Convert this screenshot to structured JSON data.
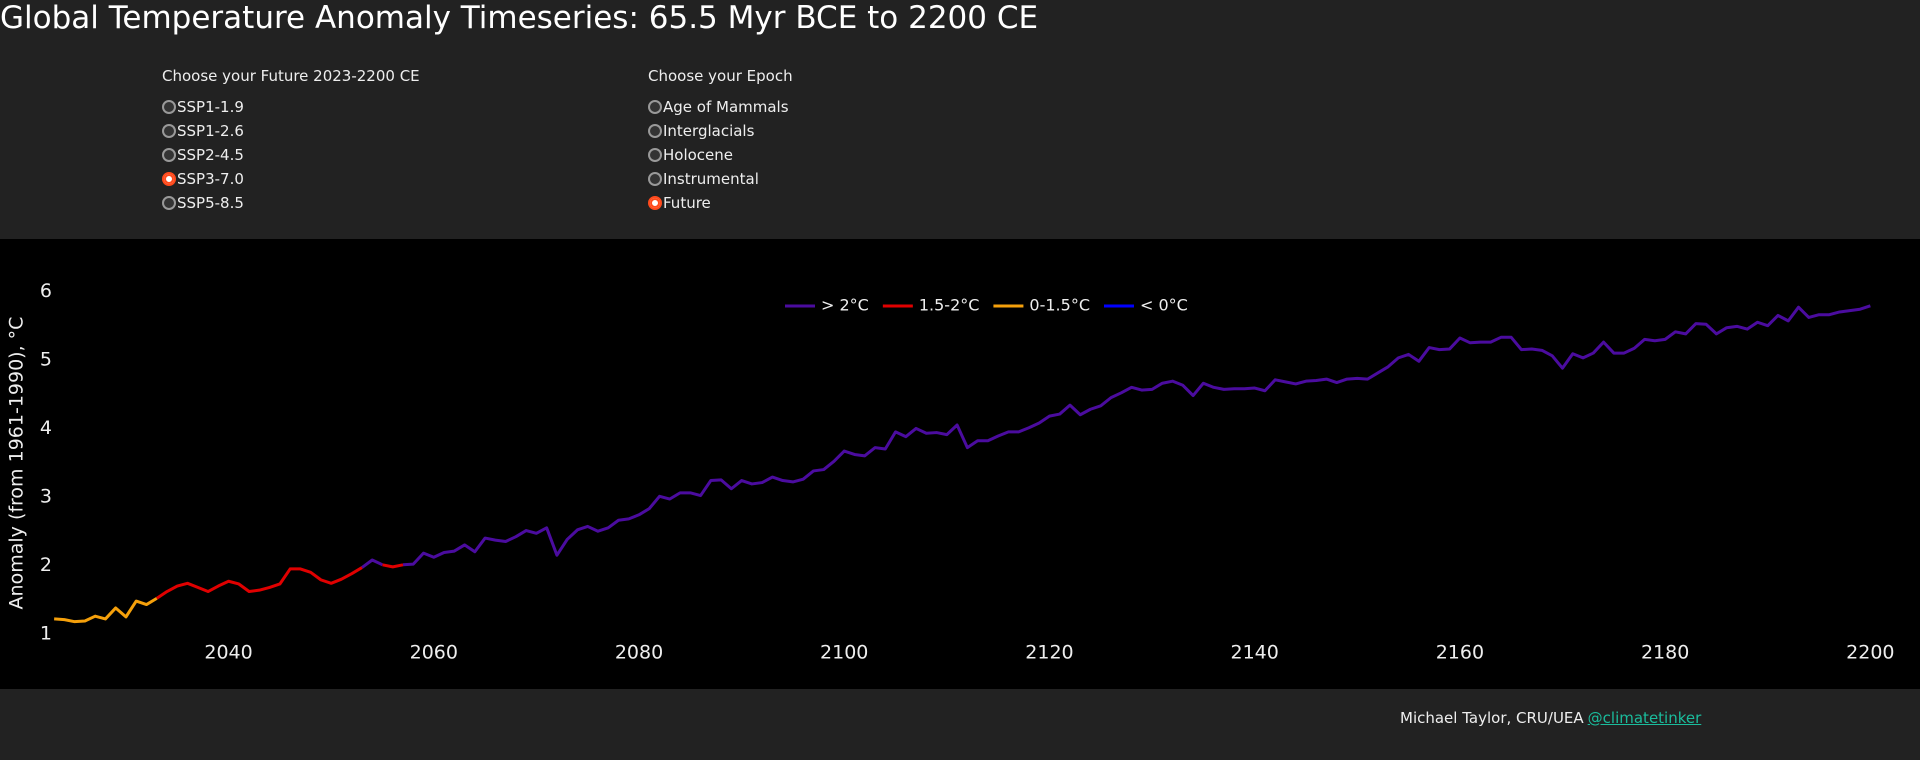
{
  "header": {
    "title": "Global Temperature Anomaly Timeseries: 65.5 Myr BCE to 2200 CE"
  },
  "controls": [
    {
      "title": "Choose your Future 2023-2200 CE",
      "options": [
        "SSP1-1.9",
        "SSP1-2.6",
        "SSP2-4.5",
        "SSP3-7.0",
        "SSP5-8.5"
      ],
      "selected": 3
    },
    {
      "title": "Choose your Epoch",
      "options": [
        "Age of Mammals",
        "Interglacials",
        "Holocene",
        "Instrumental",
        "Future"
      ],
      "selected": 4
    }
  ],
  "chart_data": {
    "type": "line",
    "ylabel": "Anomaly (from 1961-1990), °C",
    "xlim": [
      2022.5,
      2202.5
    ],
    "xticks": [
      2040,
      2060,
      2080,
      2100,
      2120,
      2140,
      2160,
      2180,
      2200
    ],
    "ylim": [
      1,
      6.4
    ],
    "yticks": [
      1,
      2,
      3,
      4,
      5,
      6
    ],
    "grid": false,
    "series": [
      {
        "name": "> 2°C",
        "color": "#4b0c9f",
        "x": [
          2053,
          2054,
          2055,
          2056,
          2057,
          2058,
          2059,
          2060,
          2061,
          2062,
          2063,
          2064,
          2065,
          2066,
          2067,
          2068,
          2069,
          2070,
          2071,
          2072,
          2073,
          2074,
          2075,
          2076,
          2077,
          2078,
          2079,
          2080,
          2081,
          2082,
          2083,
          2084,
          2085,
          2086,
          2087,
          2088,
          2089,
          2090,
          2091,
          2092,
          2093,
          2094,
          2095,
          2096,
          2097,
          2098,
          2099,
          2100,
          2101,
          2102,
          2103,
          2104,
          2105,
          2106,
          2107,
          2108,
          2109,
          2110,
          2111,
          2112,
          2113,
          2114,
          2115,
          2116,
          2117,
          2118,
          2119,
          2120,
          2121,
          2122,
          2123,
          2124,
          2125,
          2126,
          2127,
          2128,
          2129,
          2130,
          2131,
          2132,
          2133,
          2134,
          2135,
          2136,
          2137,
          2138,
          2139,
          2140,
          2141,
          2142,
          2143,
          2144,
          2145,
          2146,
          2147,
          2148,
          2149,
          2150,
          2151,
          2152,
          2153,
          2154,
          2155,
          2156,
          2157,
          2158,
          2159,
          2160,
          2161,
          2162,
          2163,
          2164,
          2165,
          2166,
          2167,
          2168,
          2169,
          2170,
          2171,
          2172,
          2173,
          2174,
          2175,
          2176,
          2177,
          2178,
          2179,
          2180,
          2181,
          2182,
          2183,
          2184,
          2185,
          2186,
          2187,
          2188,
          2189,
          2190,
          2191,
          2192,
          2193,
          2194,
          2195,
          2196,
          2197,
          2198,
          2199,
          2200
        ],
        "values": [
          1.97,
          2.08,
          2.01,
          null,
          2.01,
          2.02,
          2.18,
          2.12,
          2.19,
          2.21,
          2.3,
          2.2,
          2.4,
          2.37,
          2.35,
          2.42,
          2.51,
          2.47,
          2.55,
          2.15,
          2.38,
          2.52,
          2.57,
          2.5,
          2.55,
          2.66,
          2.68,
          2.74,
          2.83,
          3.01,
          2.97,
          3.06,
          3.06,
          3.02,
          3.24,
          3.25,
          3.12,
          3.24,
          3.19,
          3.21,
          3.29,
          3.24,
          3.22,
          3.26,
          3.38,
          3.4,
          3.52,
          3.67,
          3.62,
          3.6,
          3.72,
          3.7,
          3.95,
          3.88,
          4.0,
          3.93,
          3.94,
          3.91,
          4.05,
          3.72,
          3.82,
          3.82,
          3.89,
          3.95,
          3.95,
          4.01,
          4.08,
          4.18,
          4.21,
          4.34,
          4.2,
          4.28,
          4.33,
          4.45,
          4.52,
          4.6,
          4.56,
          4.57,
          4.66,
          4.69,
          4.63,
          4.48,
          4.66,
          4.6,
          4.57,
          4.58,
          4.58,
          4.59,
          4.55,
          4.71,
          4.68,
          4.65,
          4.69,
          4.7,
          4.72,
          4.67,
          4.72,
          4.73,
          4.72,
          4.81,
          4.9,
          5.03,
          5.08,
          4.98,
          5.18,
          5.15,
          5.16,
          5.32,
          5.25,
          5.26,
          5.26,
          5.33,
          5.33,
          5.15,
          5.16,
          5.14,
          5.06,
          4.88,
          5.09,
          5.03,
          5.1,
          5.26,
          5.1,
          5.1,
          5.17,
          5.3,
          5.28,
          5.3,
          5.41,
          5.38,
          5.53,
          5.52,
          5.38,
          5.47,
          5.49,
          5.45,
          5.55,
          5.5,
          5.65,
          5.57,
          5.77,
          5.62,
          5.66,
          5.66,
          5.7,
          5.72,
          5.74,
          5.79
        ]
      },
      {
        "name": "1.5-2°C",
        "color": "#e00000",
        "x": [
          2033,
          2034,
          2035,
          2036,
          2037,
          2038,
          2039,
          2040,
          2041,
          2042,
          2043,
          2044,
          2045,
          2046,
          2047,
          2048,
          2049,
          2050,
          2051,
          2052,
          2053,
          2054,
          2055,
          2056,
          2057
        ],
        "values": [
          1.52,
          1.62,
          1.7,
          1.74,
          1.68,
          1.62,
          1.7,
          1.77,
          1.73,
          1.62,
          1.64,
          1.68,
          1.73,
          1.95,
          1.95,
          1.9,
          1.79,
          1.74,
          1.8,
          1.88,
          1.97,
          null,
          2.01,
          1.98,
          2.01
        ]
      },
      {
        "name": "0-1.5°C",
        "color": "#f5a00b",
        "x": [
          2023,
          2024,
          2025,
          2026,
          2027,
          2028,
          2029,
          2030,
          2031,
          2032,
          2033
        ],
        "values": [
          1.22,
          1.21,
          1.18,
          1.19,
          1.26,
          1.22,
          1.38,
          1.25,
          1.48,
          1.43,
          1.52
        ]
      },
      {
        "name": "< 0°C",
        "color": "#0000ff",
        "x": [],
        "values": []
      }
    ]
  },
  "footer": {
    "credit": "Michael Taylor, CRU/UEA",
    "link": "@climatetinker"
  }
}
